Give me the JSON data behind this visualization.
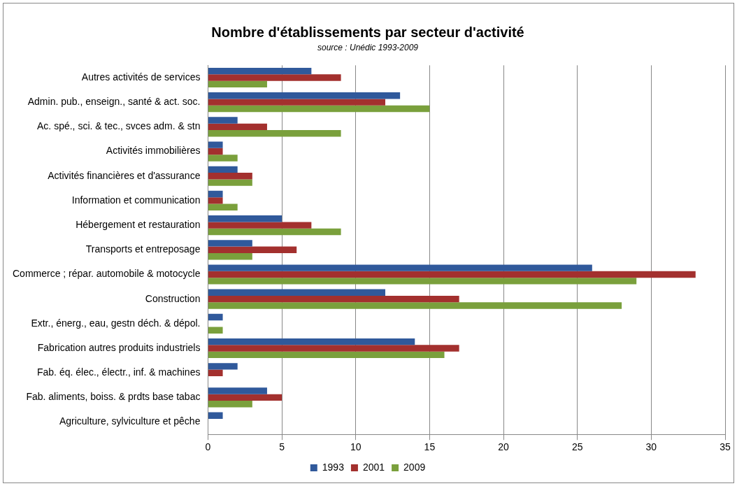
{
  "chart_data": {
    "type": "bar",
    "orientation": "horizontal",
    "title": "Nombre d'établissements par secteur d'activité",
    "subtitle": "source : Unédic 1993-2009",
    "categories": [
      "Autres activités de services",
      "Admin. pub., enseign., santé & act. soc.",
      "Ac. spé., sci. & tec., svces adm. & stn",
      "Activités immobilières",
      "Activités financières et d'assurance",
      "Information et communication",
      "Hébergement et restauration",
      "Transports et entreposage",
      "Commerce ; répar. automobile & motocycle",
      "Construction",
      "Extr., énerg., eau, gestn déch. & dépol.",
      "Fabrication autres produits industriels",
      "Fab. éq. élec., électr., inf. & machines",
      "Fab. aliments, boiss. & prdts base tabac",
      "Agriculture, sylviculture et pêche"
    ],
    "series": [
      {
        "name": "1993",
        "color": "#30599b",
        "values": [
          7,
          13,
          2,
          1,
          2,
          1,
          5,
          3,
          26,
          12,
          1,
          14,
          2,
          4,
          1
        ]
      },
      {
        "name": "2001",
        "color": "#a3302e",
        "values": [
          9,
          12,
          4,
          1,
          3,
          1,
          7,
          6,
          33,
          17,
          0,
          17,
          1,
          5,
          0
        ]
      },
      {
        "name": "2009",
        "color": "#7aa03c",
        "values": [
          4,
          15,
          9,
          2,
          3,
          2,
          9,
          3,
          29,
          28,
          1,
          16,
          0,
          3,
          0
        ]
      }
    ],
    "xlim": [
      0,
      35
    ],
    "xticks": [
      0,
      5,
      10,
      15,
      20,
      25,
      30,
      35
    ],
    "grid": "x",
    "legend": "bottom"
  }
}
